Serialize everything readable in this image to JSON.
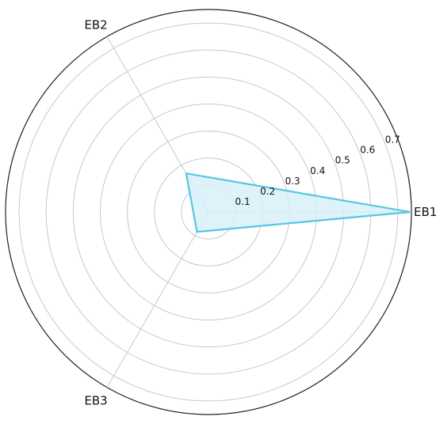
{
  "chart_data": {
    "type": "radar",
    "axes": [
      "EB1",
      "EB2",
      "EB3"
    ],
    "angles_deg": [
      0,
      120,
      240
    ],
    "series": [
      {
        "values": [
          0.745,
          0.165,
          0.085
        ]
      }
    ],
    "rlim": [
      0,
      0.75
    ],
    "rticks": [
      0.1,
      0.2,
      0.3,
      0.4,
      0.5,
      0.6,
      0.7
    ],
    "rtick_labels": [
      "0.1",
      "0.2",
      "0.3",
      "0.4",
      "0.5",
      "0.6",
      "0.7"
    ],
    "rtick_label_angle_deg": 22.5,
    "grid": true,
    "colors": {
      "line": "#56c6e6",
      "fill": "#d8f0f8",
      "grid": "#c8c8c8",
      "frame": "#222222"
    }
  }
}
